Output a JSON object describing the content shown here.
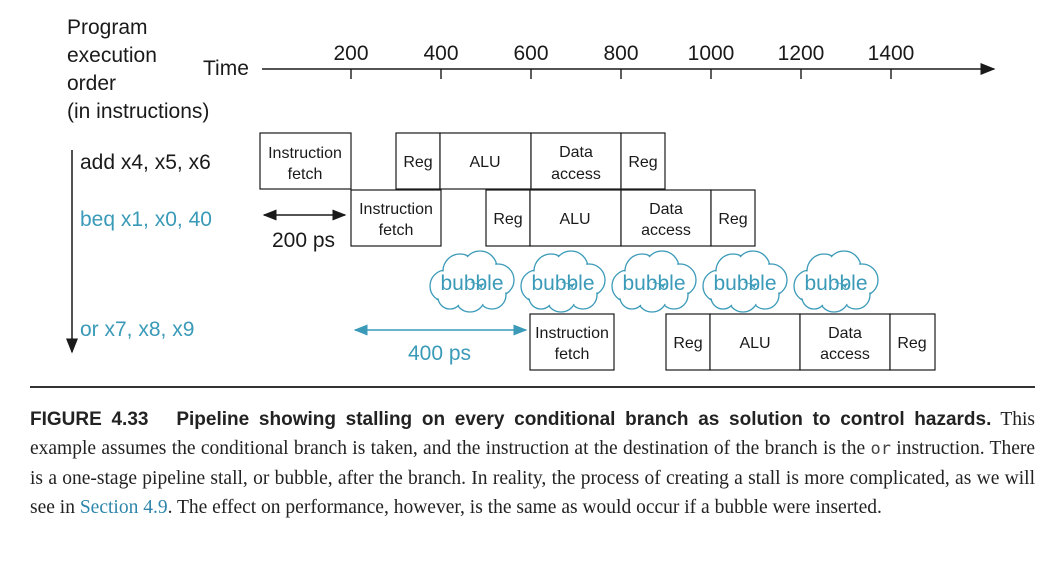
{
  "diagram": {
    "y_axis_label": [
      "Program",
      "execution",
      "order",
      "(in instructions)"
    ],
    "time_label": "Time",
    "time_ticks": [
      "200",
      "400",
      "600",
      "800",
      "1000",
      "1200",
      "1400"
    ],
    "instructions": [
      {
        "name": "add x4, x5, x6",
        "color": "#1a1a1a"
      },
      {
        "name": "beq x1, x0, 40",
        "color": "#3a9ab8"
      },
      {
        "name": "or x7, x8, x9",
        "color": "#3a9ab8"
      }
    ],
    "stages": {
      "fetch": [
        "Instruction",
        "fetch"
      ],
      "reg": "Reg",
      "alu": "ALU",
      "data": [
        "Data",
        "access"
      ]
    },
    "bubble_label": "bubble",
    "bubble_count": 5,
    "interval_1": "200 ps",
    "interval_2": "400 ps",
    "accent_color": "#3a9ab8"
  },
  "caption": {
    "figure_label": "FIGURE 4.33",
    "title": "Pipeline showing stalling on every conditional branch as solution to control hazards.",
    "text_1": "This example assumes the conditional branch is taken, and the instruction at the destination of the branch is the",
    "code": "or",
    "text_2": "instruction. There is a one-stage pipeline stall, or bubble, after the branch. In reality, the process of creating a stall is more complicated, as we will see in",
    "link": "Section 4.9",
    "text_3": ". The effect on performance, however, is the same as would occur if a bubble were inserted."
  }
}
